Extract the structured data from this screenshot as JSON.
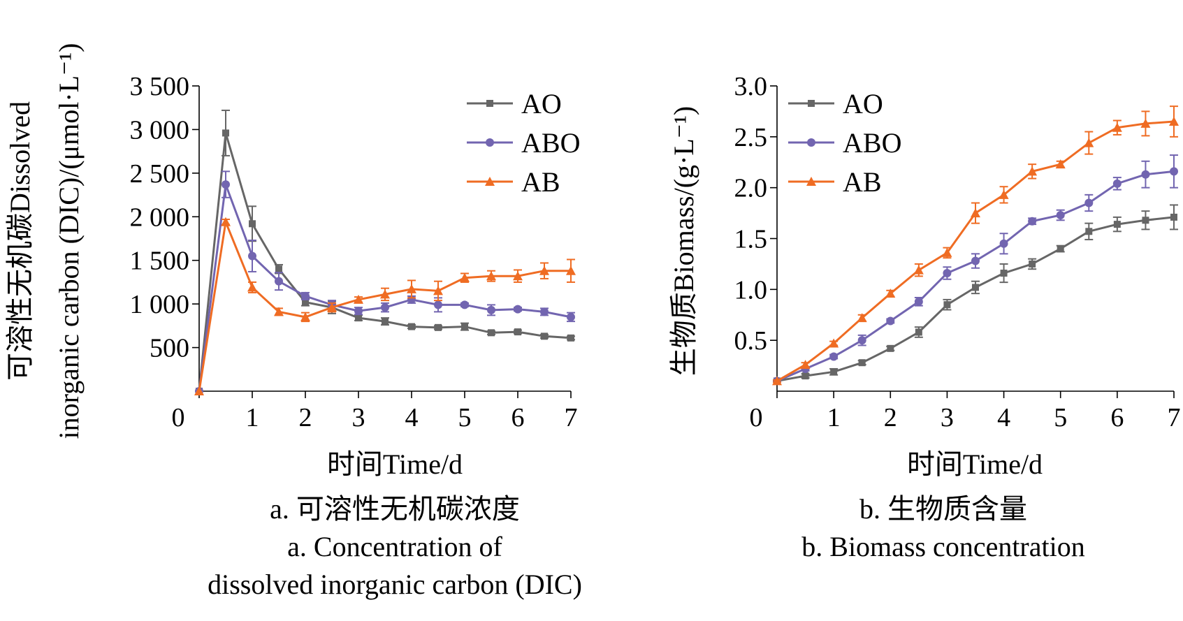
{
  "chart_data": [
    {
      "panel": "a",
      "type": "line",
      "ylabel_line1": "可溶性无机碳Dissolved",
      "ylabel_line2": "inorganic carbon (DIC)/(μmol·L⁻¹)",
      "xlabel": "时间Time/d",
      "caption_zh": "a. 可溶性无机碳浓度",
      "caption_en_line1": "a. Concentration of",
      "caption_en_line2": "dissolved inorganic carbon (DIC)",
      "xlim": [
        0,
        7
      ],
      "ylim": [
        0,
        3500
      ],
      "x_ticks": [
        0,
        1,
        2,
        3,
        4,
        5,
        6,
        7
      ],
      "x_tick_labels": [
        "0",
        "1",
        "2",
        "3",
        "4",
        "5",
        "6",
        "7"
      ],
      "y_ticks": [
        500,
        1000,
        1500,
        2000,
        2500,
        3000,
        3500
      ],
      "y_tick_labels": [
        "500",
        "1 000",
        "1 500",
        "2 000",
        "2 500",
        "3 000",
        "3 500"
      ],
      "legend_position": "top-right",
      "x": [
        0,
        0.5,
        1,
        1.5,
        2,
        2.5,
        3,
        3.5,
        4,
        4.5,
        5,
        5.5,
        6,
        6.5,
        7
      ],
      "series": [
        {
          "name": "AO",
          "color": "#666666",
          "marker": "square",
          "values": [
            0,
            2960,
            1920,
            1400,
            1020,
            960,
            840,
            800,
            740,
            730,
            740,
            670,
            680,
            630,
            610
          ],
          "errors": [
            0,
            260,
            200,
            50,
            40,
            70,
            30,
            40,
            20,
            20,
            40,
            20,
            20,
            20,
            20
          ]
        },
        {
          "name": "ABO",
          "color": "#7265b0",
          "marker": "circle",
          "values": [
            0,
            2370,
            1550,
            1260,
            1090,
            990,
            920,
            960,
            1050,
            990,
            990,
            930,
            940,
            910,
            850
          ],
          "errors": [
            0,
            150,
            180,
            100,
            40,
            50,
            40,
            50,
            40,
            80,
            20,
            60,
            20,
            40,
            50
          ]
        },
        {
          "name": "AB",
          "color": "#ef6c23",
          "marker": "triangle",
          "values": [
            0,
            1940,
            1190,
            910,
            850,
            960,
            1050,
            1110,
            1170,
            1150,
            1300,
            1320,
            1320,
            1380,
            1380
          ],
          "errors": [
            0,
            30,
            60,
            40,
            50,
            50,
            30,
            70,
            100,
            110,
            50,
            60,
            70,
            90,
            130
          ]
        }
      ]
    },
    {
      "panel": "b",
      "type": "line",
      "ylabel_line1": "生物质Biomass/(g·L⁻¹)",
      "xlabel": "时间Time/d",
      "caption_zh": "b. 生物质含量",
      "caption_en_line1": "b. Biomass concentration",
      "xlim": [
        0,
        7
      ],
      "ylim": [
        0,
        3.0
      ],
      "x_ticks": [
        0,
        1,
        2,
        3,
        4,
        5,
        6,
        7
      ],
      "x_tick_labels": [
        "0",
        "1",
        "2",
        "3",
        "4",
        "5",
        "6",
        "7"
      ],
      "y_ticks": [
        0.5,
        1.0,
        1.5,
        2.0,
        2.5,
        3.0
      ],
      "y_tick_labels": [
        "0.5",
        "1.0",
        "1.5",
        "2.0",
        "2.5",
        "3.0"
      ],
      "legend_position": "top-left",
      "x": [
        0,
        0.5,
        1,
        1.5,
        2,
        2.5,
        3,
        3.5,
        4,
        4.5,
        5,
        5.5,
        6,
        6.5,
        7
      ],
      "series": [
        {
          "name": "AO",
          "color": "#666666",
          "marker": "square",
          "values": [
            0.1,
            0.15,
            0.19,
            0.28,
            0.42,
            0.58,
            0.85,
            1.02,
            1.16,
            1.25,
            1.4,
            1.57,
            1.64,
            1.68,
            1.71
          ],
          "errors": [
            0.01,
            0.02,
            0.03,
            0.02,
            0.02,
            0.05,
            0.05,
            0.06,
            0.09,
            0.05,
            0.03,
            0.08,
            0.07,
            0.09,
            0.12
          ]
        },
        {
          "name": "ABO",
          "color": "#7265b0",
          "marker": "circle",
          "values": [
            0.1,
            0.22,
            0.34,
            0.5,
            0.69,
            0.88,
            1.16,
            1.28,
            1.45,
            1.67,
            1.73,
            1.85,
            2.04,
            2.13,
            2.16
          ],
          "errors": [
            0.01,
            0.02,
            0.02,
            0.05,
            0.02,
            0.04,
            0.06,
            0.07,
            0.1,
            0.03,
            0.05,
            0.08,
            0.06,
            0.13,
            0.16
          ]
        },
        {
          "name": "AB",
          "color": "#ef6c23",
          "marker": "triangle",
          "values": [
            0.1,
            0.26,
            0.47,
            0.72,
            0.96,
            1.19,
            1.36,
            1.75,
            1.93,
            2.16,
            2.23,
            2.44,
            2.59,
            2.63,
            2.65
          ],
          "errors": [
            0.01,
            0.02,
            0.02,
            0.03,
            0.03,
            0.06,
            0.05,
            0.1,
            0.08,
            0.07,
            0.03,
            0.11,
            0.07,
            0.12,
            0.15
          ]
        }
      ]
    }
  ]
}
